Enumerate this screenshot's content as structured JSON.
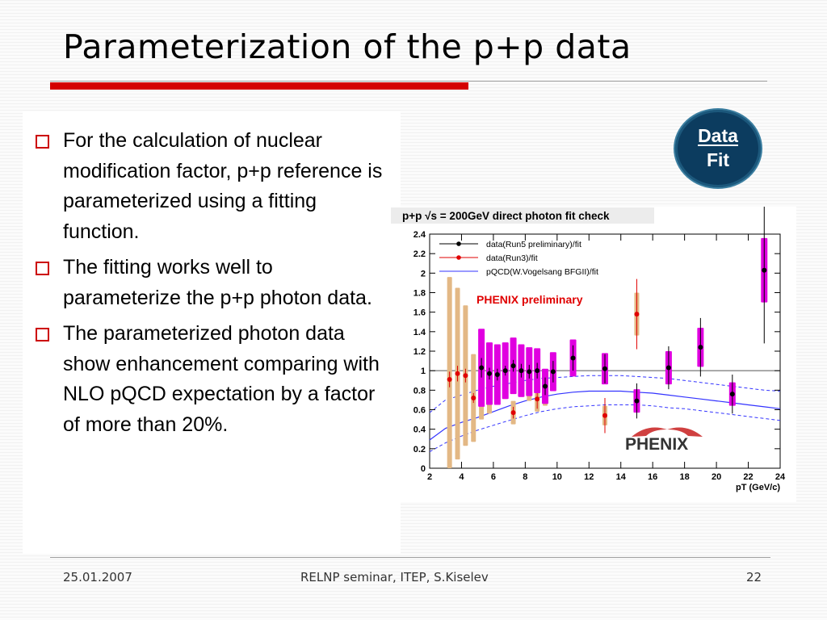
{
  "slide": {
    "title": "Parameterization of the p+p data",
    "bullets": [
      "For the calculation of nuclear modification factor, p+p reference is parameterized using a fitting function.",
      "The fitting works well to parameterize the p+p photon data.",
      "The parameterized photon data show enhancement comparing with NLO pQCD expectation by a factor of more than 20%."
    ],
    "badge": {
      "line1": "Data",
      "line2": "Fit"
    },
    "footer": {
      "date": "25.01.2007",
      "center": "RELNP seminar,  ITEP,  S.Kiselev",
      "page": "22"
    }
  },
  "colors": {
    "title_rule": "#d40000",
    "bullet_box": "#cc0000",
    "badge_bg": "#0c3c5f"
  },
  "chart_data": {
    "type": "scatter",
    "title": "p+p √s = 200GeV direct photon fit check",
    "xlabel": "pT (GeV/c)",
    "ylabel": "",
    "xlim": [
      2,
      24
    ],
    "ylim": [
      0,
      2.4
    ],
    "xticks": [
      2,
      4,
      6,
      8,
      10,
      12,
      14,
      16,
      18,
      20,
      22,
      24
    ],
    "yticks": [
      0,
      0.2,
      0.4,
      0.6,
      0.8,
      1,
      1.2,
      1.4,
      1.6,
      1.8,
      2,
      2.2,
      2.4
    ],
    "watermark": "PHENIX preliminary",
    "logo": "PHENIX",
    "reference_line": 1,
    "series": [
      {
        "name": "data(Run5 preliminary)/fit",
        "color": "#000000",
        "band_color": "#e000e0",
        "points": [
          {
            "x": 5.25,
            "y": 1.03,
            "err": 0.1,
            "sys": 0.4
          },
          {
            "x": 5.75,
            "y": 0.97,
            "err": 0.06,
            "sys": 0.32
          },
          {
            "x": 6.25,
            "y": 0.96,
            "err": 0.06,
            "sys": 0.31
          },
          {
            "x": 6.75,
            "y": 1.0,
            "err": 0.05,
            "sys": 0.29
          },
          {
            "x": 7.25,
            "y": 1.05,
            "err": 0.06,
            "sys": 0.29
          },
          {
            "x": 7.75,
            "y": 1.0,
            "err": 0.07,
            "sys": 0.27
          },
          {
            "x": 8.25,
            "y": 0.99,
            "err": 0.07,
            "sys": 0.25
          },
          {
            "x": 8.75,
            "y": 1.0,
            "err": 0.08,
            "sys": 0.23
          },
          {
            "x": 9.25,
            "y": 0.84,
            "err": 0.09,
            "sys": 0.18
          },
          {
            "x": 9.75,
            "y": 0.99,
            "err": 0.11,
            "sys": 0.2
          },
          {
            "x": 11.0,
            "y": 1.13,
            "err": 0.13,
            "sys": 0.19
          },
          {
            "x": 13.0,
            "y": 1.02,
            "err": 0.15,
            "sys": 0.16
          },
          {
            "x": 15.0,
            "y": 0.69,
            "err": 0.18,
            "sys": 0.12
          },
          {
            "x": 17.0,
            "y": 1.03,
            "err": 0.22,
            "sys": 0.17
          },
          {
            "x": 19.0,
            "y": 1.24,
            "err": 0.3,
            "sys": 0.2
          },
          {
            "x": 21.0,
            "y": 0.76,
            "err": 0.2,
            "sys": 0.12
          },
          {
            "x": 23.0,
            "y": 2.03,
            "err": 0.75,
            "sys": 0.33
          }
        ]
      },
      {
        "name": "data(Run3)/fit",
        "color": "#e00000",
        "band_color": "#e3b885",
        "points": [
          {
            "x": 3.25,
            "y": 0.91,
            "err": 0.08,
            "sys": 1.05
          },
          {
            "x": 3.75,
            "y": 0.97,
            "err": 0.08,
            "sys": 0.88
          },
          {
            "x": 4.25,
            "y": 0.95,
            "err": 0.07,
            "sys": 0.72
          },
          {
            "x": 4.75,
            "y": 0.72,
            "err": 0.05,
            "sys": 0.45
          },
          {
            "x": 5.25,
            "y": 0.8,
            "err": 0.05,
            "sys": 0.3
          },
          {
            "x": 5.75,
            "y": 0.78,
            "err": 0.05,
            "sys": 0.22
          },
          {
            "x": 6.25,
            "y": 0.86,
            "err": 0.05,
            "sys": 0.19
          },
          {
            "x": 6.75,
            "y": 0.9,
            "err": 0.06,
            "sys": 0.19
          },
          {
            "x": 7.25,
            "y": 0.57,
            "err": 0.06,
            "sys": 0.12
          },
          {
            "x": 7.75,
            "y": 0.88,
            "err": 0.07,
            "sys": 0.15
          },
          {
            "x": 8.25,
            "y": 0.84,
            "err": 0.1,
            "sys": 0.15
          },
          {
            "x": 8.75,
            "y": 0.71,
            "err": 0.1,
            "sys": 0.13
          },
          {
            "x": 9.25,
            "y": 0.78,
            "err": 0.12,
            "sys": 0.14
          },
          {
            "x": 13.0,
            "y": 0.54,
            "err": 0.18,
            "sys": 0.1
          },
          {
            "x": 15.0,
            "y": 1.58,
            "err": 0.36,
            "sys": 0.22
          }
        ]
      },
      {
        "name": "pQCD(W.Vogelsang BFGII)/fit",
        "color": "#3333ff",
        "type": "curve",
        "x": [
          2,
          3,
          4,
          5,
          6,
          7,
          8,
          9,
          10,
          11,
          12,
          13,
          14,
          15,
          16,
          17,
          18,
          19,
          20,
          21,
          22,
          23,
          24
        ],
        "y": [
          0.29,
          0.41,
          0.47,
          0.52,
          0.58,
          0.64,
          0.69,
          0.73,
          0.76,
          0.78,
          0.79,
          0.79,
          0.79,
          0.78,
          0.77,
          0.75,
          0.73,
          0.71,
          0.69,
          0.67,
          0.65,
          0.63,
          0.61
        ],
        "band_upper": [
          0.57,
          0.7,
          0.75,
          0.8,
          0.84,
          0.87,
          0.9,
          0.92,
          0.93,
          0.94,
          0.95,
          0.95,
          0.95,
          0.94,
          0.93,
          0.92,
          0.9,
          0.88,
          0.86,
          0.84,
          0.82,
          0.8,
          0.79
        ],
        "band_lower": [
          0.17,
          0.26,
          0.33,
          0.39,
          0.44,
          0.49,
          0.54,
          0.58,
          0.61,
          0.63,
          0.64,
          0.65,
          0.65,
          0.65,
          0.64,
          0.62,
          0.61,
          0.59,
          0.57,
          0.55,
          0.53,
          0.51,
          0.49
        ]
      }
    ]
  }
}
